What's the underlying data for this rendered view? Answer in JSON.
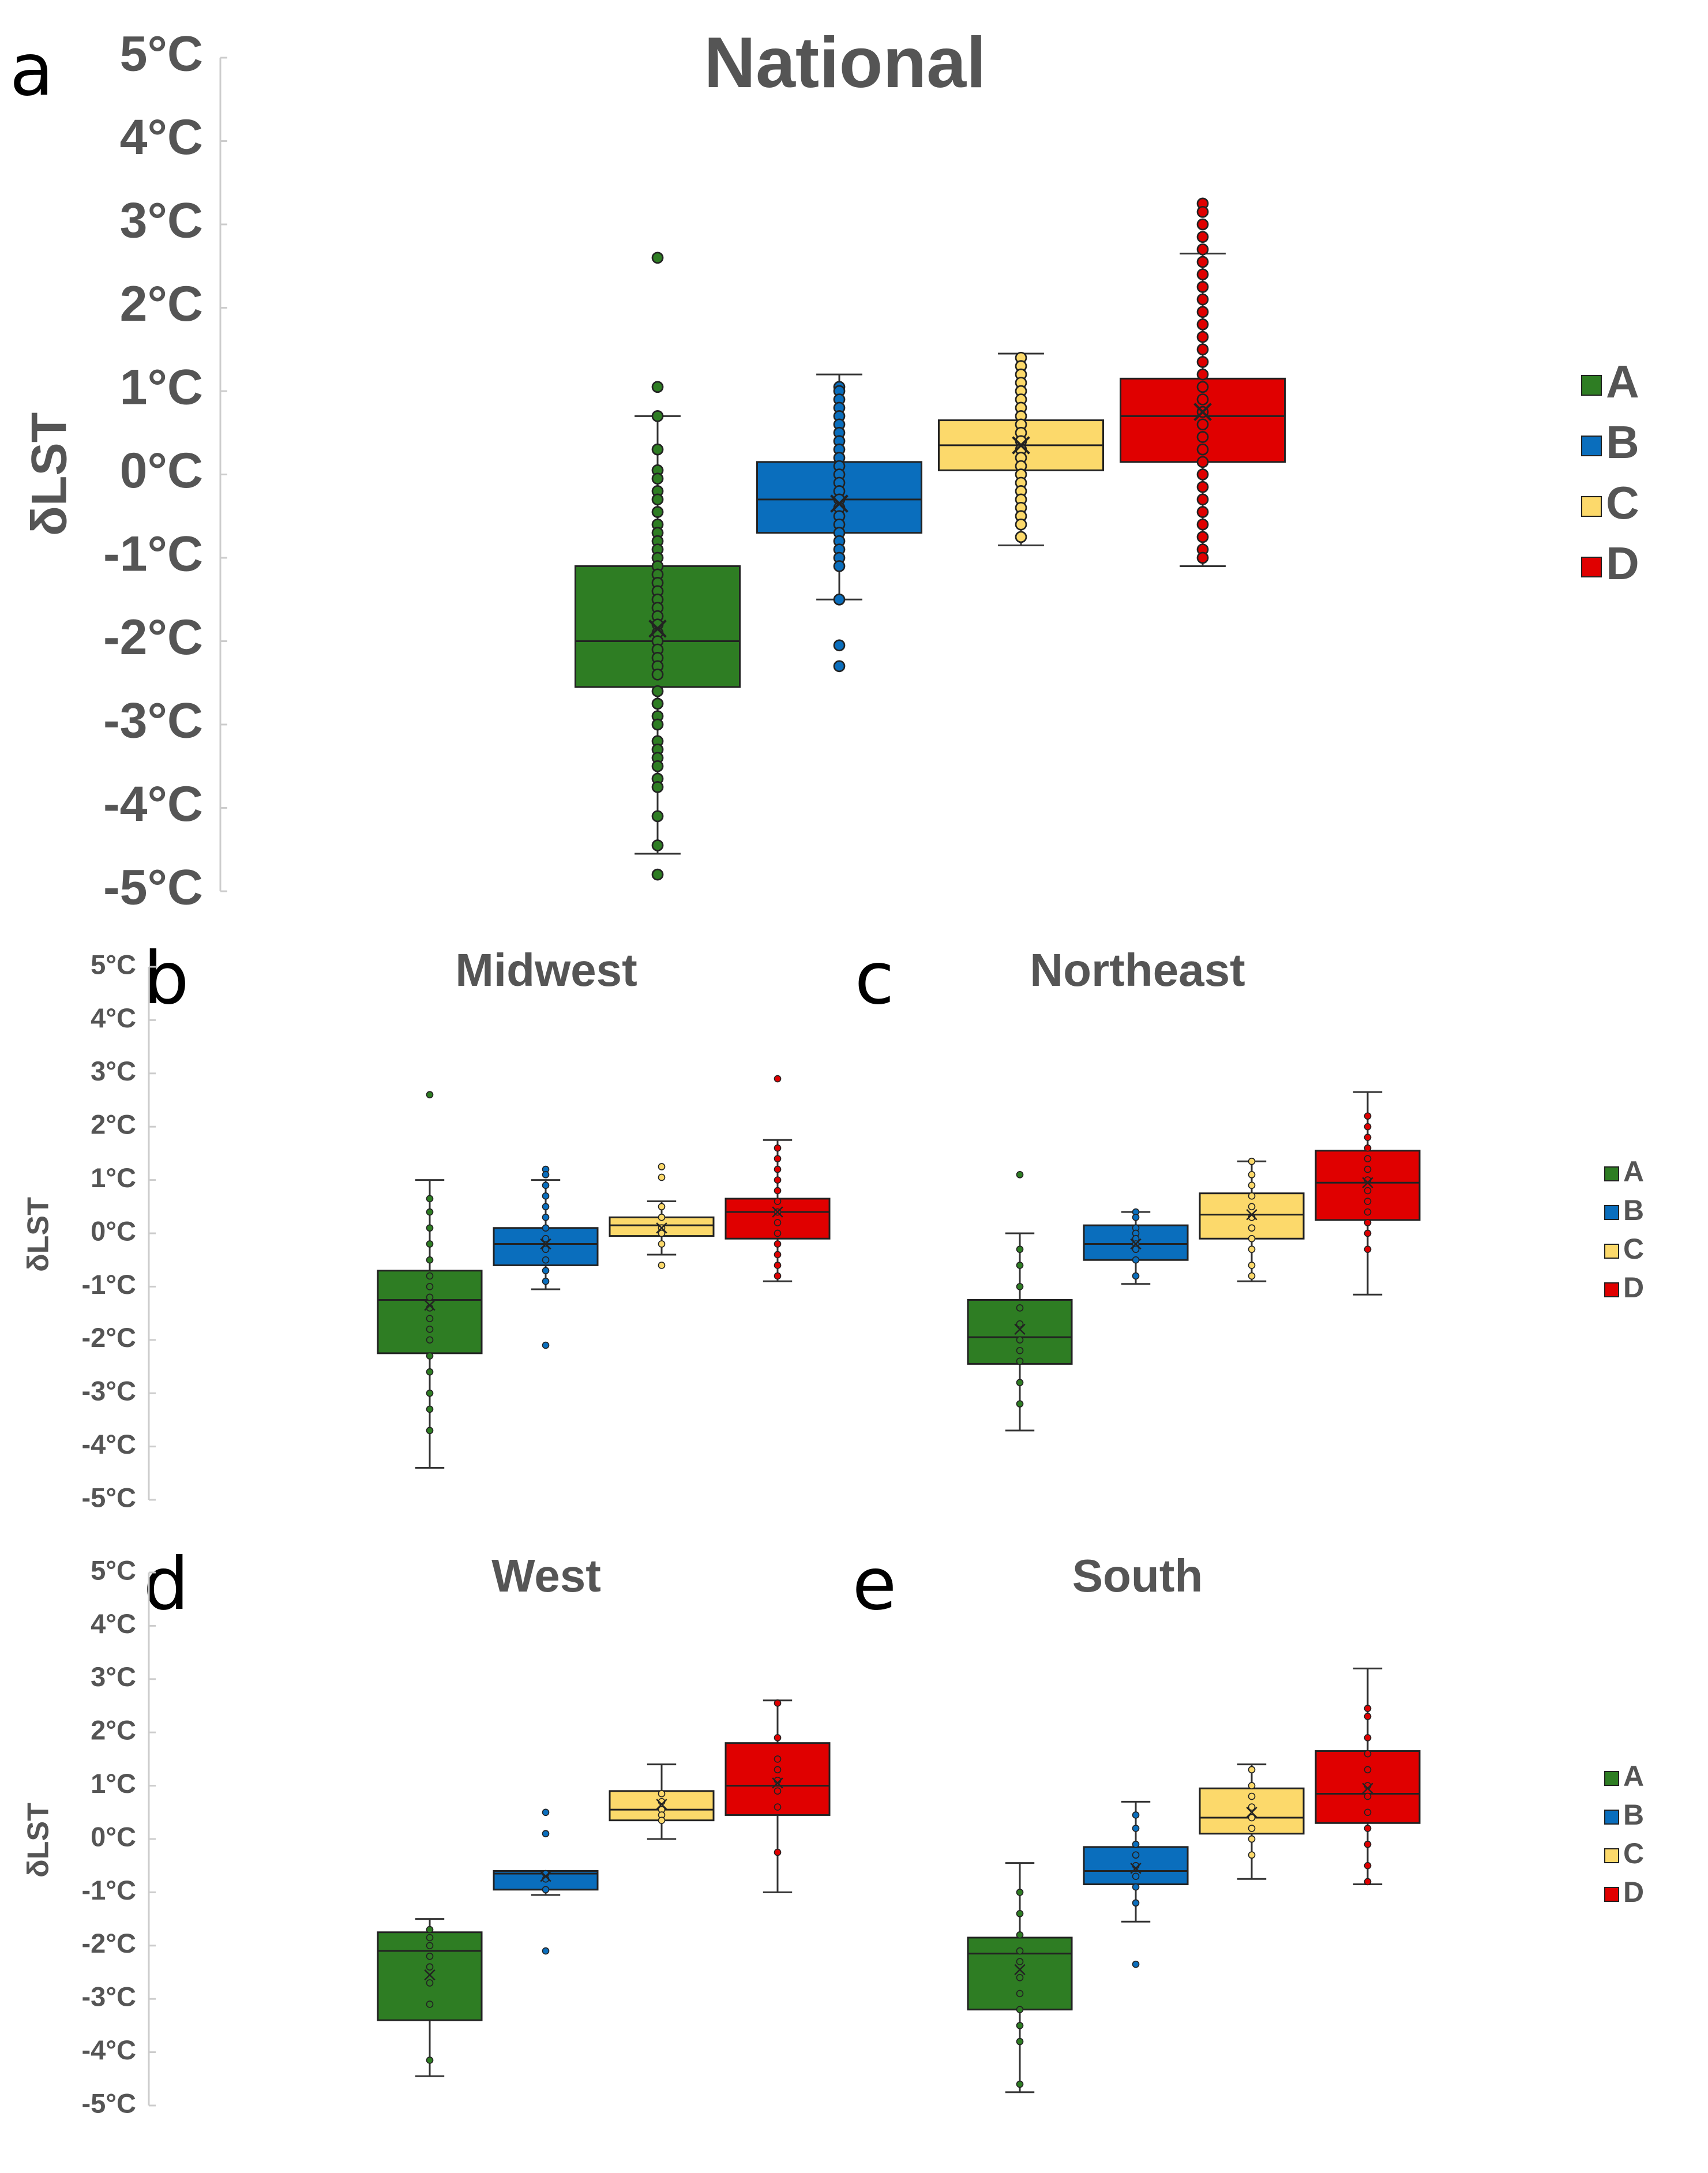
{
  "colors": {
    "A": "#2e7d23",
    "B": "#0a6ebd",
    "C": "#fcd96b",
    "D": "#e00000",
    "axis": "#cccccc",
    "text": "#555555"
  },
  "chart_data": [
    {
      "type": "box",
      "panel": "a",
      "title": "National",
      "ylabel": "δLST",
      "ylim": [
        -5,
        5
      ],
      "ytick_labels": [
        "5°C",
        "4°C",
        "3°C",
        "2°C",
        "1°C",
        "0°C",
        "-1°C",
        "-2°C",
        "-3°C",
        "-4°C",
        "-5°C"
      ],
      "legend": [
        "A",
        "B",
        "C",
        "D"
      ],
      "series": [
        {
          "name": "A",
          "q1": -2.55,
          "median": -2.0,
          "q3": -1.1,
          "mean": -1.85,
          "whisker_low": -4.55,
          "whisker_high": 0.7,
          "points": [
            2.6,
            1.05,
            0.7,
            0.3,
            0.05,
            -0.05,
            -0.2,
            -0.3,
            -0.45,
            -0.6,
            -0.7,
            -0.8,
            -0.9,
            -1.0,
            -1.1,
            -1.2,
            -1.3,
            -1.4,
            -1.5,
            -1.6,
            -1.7,
            -1.8,
            -1.9,
            -2.0,
            -2.1,
            -2.2,
            -2.3,
            -2.4,
            -2.6,
            -2.75,
            -2.9,
            -3.0,
            -3.2,
            -3.3,
            -3.4,
            -3.5,
            -3.65,
            -3.75,
            -4.1,
            -4.45,
            -4.8
          ]
        },
        {
          "name": "B",
          "q1": -0.7,
          "median": -0.3,
          "q3": 0.15,
          "mean": -0.35,
          "whisker_low": -1.5,
          "whisker_high": 1.2,
          "points": [
            1.05,
            1.0,
            0.9,
            0.8,
            0.7,
            0.6,
            0.5,
            0.4,
            0.3,
            0.2,
            0.1,
            0.0,
            -0.1,
            -0.2,
            -0.3,
            -0.4,
            -0.5,
            -0.6,
            -0.7,
            -0.8,
            -0.9,
            -1.0,
            -1.1,
            -1.5,
            -2.05,
            -2.3
          ]
        },
        {
          "name": "C",
          "q1": 0.05,
          "median": 0.35,
          "q3": 0.65,
          "mean": 0.35,
          "whisker_low": -0.85,
          "whisker_high": 1.45,
          "points": [
            1.4,
            1.3,
            1.2,
            1.1,
            1.0,
            0.9,
            0.8,
            0.7,
            0.6,
            0.5,
            0.4,
            0.3,
            0.2,
            0.1,
            0.0,
            -0.1,
            -0.2,
            -0.3,
            -0.4,
            -0.5,
            -0.6,
            -0.75
          ]
        },
        {
          "name": "D",
          "q1": 0.15,
          "median": 0.7,
          "q3": 1.15,
          "mean": 0.75,
          "whisker_low": -1.1,
          "whisker_high": 2.65,
          "points": [
            3.25,
            3.15,
            3.0,
            2.85,
            2.7,
            2.55,
            2.4,
            2.25,
            2.1,
            1.95,
            1.8,
            1.65,
            1.5,
            1.35,
            1.2,
            1.05,
            0.9,
            0.75,
            0.6,
            0.45,
            0.3,
            0.15,
            0.0,
            -0.15,
            -0.3,
            -0.45,
            -0.6,
            -0.75,
            -0.9,
            -1.0
          ]
        }
      ]
    },
    {
      "type": "box",
      "panel": "b",
      "title": "Midwest",
      "ylabel": "δLST",
      "ylim": [
        -5,
        5
      ],
      "ytick_labels": [
        "5°C",
        "4°C",
        "3°C",
        "2°C",
        "1°C",
        "0°C",
        "-1°C",
        "-2°C",
        "-3°C",
        "-4°C",
        "-5°C"
      ],
      "series": [
        {
          "name": "A",
          "q1": -2.25,
          "median": -1.25,
          "q3": -0.7,
          "mean": -1.35,
          "whisker_low": -4.4,
          "whisker_high": 1.0,
          "points": [
            2.6,
            0.65,
            0.4,
            0.1,
            -0.2,
            -0.5,
            -0.8,
            -1.0,
            -1.2,
            -1.4,
            -1.6,
            -1.8,
            -2.0,
            -2.3,
            -2.6,
            -3.0,
            -3.3,
            -3.7
          ]
        },
        {
          "name": "B",
          "q1": -0.6,
          "median": -0.2,
          "q3": 0.1,
          "mean": -0.2,
          "whisker_low": -1.05,
          "whisker_high": 1.0,
          "points": [
            1.2,
            1.1,
            0.9,
            0.7,
            0.5,
            0.3,
            0.1,
            -0.1,
            -0.3,
            -0.5,
            -0.7,
            -0.9,
            -2.1
          ]
        },
        {
          "name": "C",
          "q1": -0.05,
          "median": 0.15,
          "q3": 0.3,
          "mean": 0.1,
          "whisker_low": -0.4,
          "whisker_high": 0.6,
          "points": [
            1.25,
            1.05,
            0.5,
            0.3,
            0.1,
            0.0,
            -0.2,
            -0.6
          ]
        },
        {
          "name": "D",
          "q1": -0.1,
          "median": 0.4,
          "q3": 0.65,
          "mean": 0.4,
          "whisker_low": -0.9,
          "whisker_high": 1.75,
          "points": [
            2.9,
            1.6,
            1.4,
            1.2,
            1.0,
            0.8,
            0.6,
            0.4,
            0.2,
            0.0,
            -0.2,
            -0.4,
            -0.6,
            -0.8
          ]
        }
      ]
    },
    {
      "type": "box",
      "panel": "c",
      "title": "Northeast",
      "legend": [
        "A",
        "B",
        "C",
        "D"
      ],
      "ylim": [
        -5,
        5
      ],
      "series": [
        {
          "name": "A",
          "q1": -2.45,
          "median": -1.95,
          "q3": -1.25,
          "mean": -1.8,
          "whisker_low": -3.7,
          "whisker_high": 0.0,
          "points": [
            1.1,
            -0.3,
            -0.6,
            -1.0,
            -1.4,
            -1.7,
            -2.0,
            -2.2,
            -2.4,
            -2.8,
            -3.2
          ]
        },
        {
          "name": "B",
          "q1": -0.5,
          "median": -0.2,
          "q3": 0.15,
          "mean": -0.2,
          "whisker_low": -0.95,
          "whisker_high": 0.4,
          "points": [
            0.4,
            0.3,
            0.1,
            0.0,
            -0.1,
            -0.2,
            -0.3,
            -0.5,
            -0.8
          ]
        },
        {
          "name": "C",
          "q1": -0.1,
          "median": 0.35,
          "q3": 0.75,
          "mean": 0.35,
          "whisker_low": -0.9,
          "whisker_high": 1.35,
          "points": [
            1.35,
            1.1,
            0.9,
            0.7,
            0.5,
            0.3,
            0.1,
            -0.1,
            -0.3,
            -0.6,
            -0.8
          ]
        },
        {
          "name": "D",
          "q1": 0.25,
          "median": 0.95,
          "q3": 1.55,
          "mean": 0.95,
          "whisker_low": -1.15,
          "whisker_high": 2.65,
          "points": [
            2.2,
            2.0,
            1.8,
            1.6,
            1.4,
            1.2,
            1.0,
            0.8,
            0.6,
            0.4,
            0.2,
            0.0,
            -0.3
          ]
        }
      ]
    },
    {
      "type": "box",
      "panel": "d",
      "title": "West",
      "ylabel": "δLST",
      "ylim": [
        -5,
        5
      ],
      "ytick_labels": [
        "5°C",
        "4°C",
        "3°C",
        "2°C",
        "1°C",
        "0°C",
        "-1°C",
        "-2°C",
        "-3°C",
        "-4°C",
        "-5°C"
      ],
      "series": [
        {
          "name": "A",
          "q1": -3.4,
          "median": -2.1,
          "q3": -1.75,
          "mean": -2.55,
          "whisker_low": -4.45,
          "whisker_high": -1.5,
          "points": [
            -1.7,
            -1.85,
            -2.0,
            -2.2,
            -2.4,
            -2.7,
            -3.1,
            -4.15
          ]
        },
        {
          "name": "B",
          "q1": -0.95,
          "median": -0.65,
          "q3": -0.6,
          "mean": -0.7,
          "whisker_low": -1.05,
          "whisker_high": -0.6,
          "points": [
            0.5,
            0.1,
            -0.65,
            -0.75,
            -0.95,
            -2.1
          ]
        },
        {
          "name": "C",
          "q1": 0.35,
          "median": 0.55,
          "q3": 0.9,
          "mean": 0.65,
          "whisker_low": 0.0,
          "whisker_high": 1.4,
          "points": [
            0.85,
            0.7,
            0.55,
            0.45,
            0.35
          ]
        },
        {
          "name": "D",
          "q1": 0.45,
          "median": 1.0,
          "q3": 1.8,
          "mean": 1.05,
          "whisker_low": -1.0,
          "whisker_high": 2.6,
          "points": [
            2.55,
            1.9,
            1.5,
            1.3,
            1.1,
            0.9,
            0.6,
            -0.25
          ]
        }
      ]
    },
    {
      "type": "box",
      "panel": "e",
      "title": "South",
      "legend": [
        "A",
        "B",
        "C",
        "D"
      ],
      "ylim": [
        -5,
        5
      ],
      "series": [
        {
          "name": "A",
          "q1": -3.2,
          "median": -2.15,
          "q3": -1.85,
          "mean": -2.45,
          "whisker_low": -4.75,
          "whisker_high": -0.45,
          "points": [
            -1.0,
            -1.4,
            -1.8,
            -2.1,
            -2.3,
            -2.6,
            -2.9,
            -3.2,
            -3.5,
            -3.8,
            -4.6
          ]
        },
        {
          "name": "B",
          "q1": -0.85,
          "median": -0.6,
          "q3": -0.15,
          "mean": -0.55,
          "whisker_low": -1.55,
          "whisker_high": 0.7,
          "points": [
            0.45,
            0.2,
            -0.1,
            -0.3,
            -0.5,
            -0.7,
            -0.9,
            -1.2,
            -2.35
          ]
        },
        {
          "name": "C",
          "q1": 0.1,
          "median": 0.4,
          "q3": 0.95,
          "mean": 0.5,
          "whisker_low": -0.75,
          "whisker_high": 1.4,
          "points": [
            1.3,
            1.0,
            0.8,
            0.6,
            0.4,
            0.2,
            0.0,
            -0.3
          ]
        },
        {
          "name": "D",
          "q1": 0.3,
          "median": 0.85,
          "q3": 1.65,
          "mean": 0.95,
          "whisker_low": -0.85,
          "whisker_high": 3.2,
          "points": [
            2.45,
            2.3,
            1.9,
            1.6,
            1.3,
            1.0,
            0.8,
            0.5,
            0.2,
            -0.1,
            -0.5,
            -0.8
          ]
        }
      ]
    }
  ]
}
